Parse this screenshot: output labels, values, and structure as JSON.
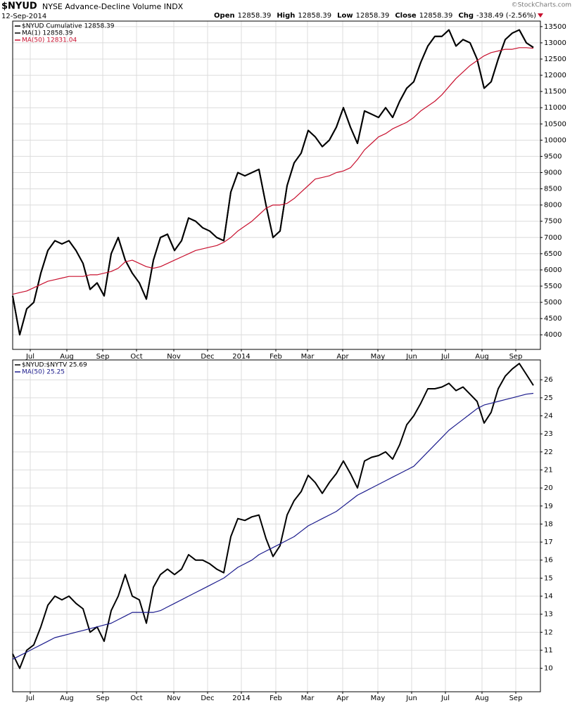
{
  "header": {
    "symbol": "$NYUD",
    "description": "NYSE Advance-Decline Volume INDX",
    "date": "12-Sep-2014",
    "quote": [
      {
        "label": "Open",
        "value": "12858.39"
      },
      {
        "label": "High",
        "value": "12858.39"
      },
      {
        "label": "Low",
        "value": "12858.39"
      },
      {
        "label": "Close",
        "value": "12858.39"
      },
      {
        "label": "Chg",
        "value": "-338.49 (-2.56%)"
      }
    ],
    "copyright": "©StockCharts.com"
  },
  "chart_data": [
    {
      "type": "line",
      "legend": "upper left",
      "grid": true,
      "x": [
        0,
        1,
        2,
        3,
        4,
        5,
        6,
        7,
        8,
        9,
        10,
        11,
        12,
        13,
        14,
        15,
        16,
        17,
        18,
        19,
        20,
        21,
        22,
        23,
        24,
        25,
        26,
        27,
        28,
        29,
        30,
        31,
        32,
        33,
        34,
        35,
        36,
        37,
        38,
        39,
        40,
        41,
        42,
        43,
        44,
        45,
        46,
        47,
        48,
        49,
        50,
        51,
        52,
        53,
        54,
        55,
        56,
        57,
        58,
        59,
        60,
        61,
        62,
        63,
        64,
        65,
        66,
        67,
        68,
        69,
        70,
        71,
        72,
        73,
        74
      ],
      "xlim": [
        0,
        75
      ],
      "xticks": [
        {
          "value": 2.5,
          "label": "Jul"
        },
        {
          "value": 7.7,
          "label": "Aug"
        },
        {
          "value": 12.8,
          "label": "Sep"
        },
        {
          "value": 17.6,
          "label": "Oct"
        },
        {
          "value": 22.9,
          "label": "Nov"
        },
        {
          "value": 27.7,
          "label": "Dec"
        },
        {
          "value": 32.5,
          "label": "2014"
        },
        {
          "value": 37.4,
          "label": "Feb"
        },
        {
          "value": 41.9,
          "label": "Mar"
        },
        {
          "value": 46.9,
          "label": "Apr"
        },
        {
          "value": 51.9,
          "label": "May"
        },
        {
          "value": 56.7,
          "label": "Jun"
        },
        {
          "value": 61.5,
          "label": "Jul"
        },
        {
          "value": 66.7,
          "label": "Aug"
        },
        {
          "value": 71.5,
          "label": "Sep"
        }
      ],
      "ylim": [
        3550,
        13670
      ],
      "yticks": [
        4000,
        4500,
        5000,
        5500,
        6000,
        6500,
        7000,
        7500,
        8000,
        8500,
        9000,
        9500,
        10000,
        10500,
        11000,
        11500,
        12000,
        12500,
        13000,
        13500
      ],
      "series": [
        {
          "name": "$NYUD Cumulative 12858.39",
          "color": "#000000",
          "values": [
            5200,
            4000,
            4800,
            5000,
            5900,
            6600,
            6900,
            6800,
            6900,
            6600,
            6200,
            5400,
            5600,
            5200,
            6500,
            7000,
            6300,
            5900,
            5600,
            5100,
            6300,
            7000,
            7100,
            6600,
            6900,
            7600,
            7500,
            7300,
            7200,
            7000,
            6900,
            8400,
            9000,
            8900,
            9000,
            9100,
            8000,
            7000,
            7200,
            8600,
            9300,
            9600,
            10300,
            10100,
            9800,
            10000,
            10400,
            11000,
            10400,
            9900,
            10900,
            10800,
            10700,
            11000,
            10700,
            11200,
            11600,
            11800,
            12400,
            12900,
            13200,
            13200,
            13400,
            12900,
            13100,
            13000,
            12500,
            11600,
            11800,
            12500,
            13100,
            13300,
            13400,
            13000,
            12858.39
          ]
        },
        {
          "name": "MA(1) 12858.39",
          "color": "#000000",
          "values": [
            5200,
            4000,
            4800,
            5000,
            5900,
            6600,
            6900,
            6800,
            6900,
            6600,
            6200,
            5400,
            5600,
            5200,
            6500,
            7000,
            6300,
            5900,
            5600,
            5100,
            6300,
            7000,
            7100,
            6600,
            6900,
            7600,
            7500,
            7300,
            7200,
            7000,
            6900,
            8400,
            9000,
            8900,
            9000,
            9100,
            8000,
            7000,
            7200,
            8600,
            9300,
            9600,
            10300,
            10100,
            9800,
            10000,
            10400,
            11000,
            10400,
            9900,
            10900,
            10800,
            10700,
            11000,
            10700,
            11200,
            11600,
            11800,
            12400,
            12900,
            13200,
            13200,
            13400,
            12900,
            13100,
            13000,
            12500,
            11600,
            11800,
            12500,
            13100,
            13300,
            13400,
            13000,
            12858.39
          ]
        },
        {
          "name": "MA(50) 12831.04",
          "color": "#c8102e",
          "values": [
            5250,
            5300,
            5350,
            5450,
            5550,
            5650,
            5700,
            5750,
            5800,
            5800,
            5800,
            5850,
            5850,
            5900,
            5950,
            6050,
            6250,
            6300,
            6200,
            6100,
            6050,
            6100,
            6200,
            6300,
            6400,
            6500,
            6600,
            6650,
            6700,
            6750,
            6850,
            7000,
            7200,
            7350,
            7500,
            7700,
            7900,
            8000,
            8000,
            8050,
            8200,
            8400,
            8600,
            8800,
            8850,
            8900,
            9000,
            9050,
            9150,
            9400,
            9700,
            9900,
            10100,
            10200,
            10350,
            10450,
            10550,
            10700,
            10900,
            11050,
            11200,
            11400,
            11650,
            11900,
            12100,
            12300,
            12450,
            12600,
            12700,
            12750,
            12800,
            12800,
            12850,
            12850,
            12831.04
          ]
        }
      ]
    },
    {
      "type": "line",
      "legend": "upper left",
      "grid": true,
      "x": [
        0,
        1,
        2,
        3,
        4,
        5,
        6,
        7,
        8,
        9,
        10,
        11,
        12,
        13,
        14,
        15,
        16,
        17,
        18,
        19,
        20,
        21,
        22,
        23,
        24,
        25,
        26,
        27,
        28,
        29,
        30,
        31,
        32,
        33,
        34,
        35,
        36,
        37,
        38,
        39,
        40,
        41,
        42,
        43,
        44,
        45,
        46,
        47,
        48,
        49,
        50,
        51,
        52,
        53,
        54,
        55,
        56,
        57,
        58,
        59,
        60,
        61,
        62,
        63,
        64,
        65,
        66,
        67,
        68,
        69,
        70,
        71,
        72,
        73,
        74
      ],
      "xlim": [
        0,
        75
      ],
      "xticks": [
        {
          "value": 2.5,
          "label": "Jul"
        },
        {
          "value": 7.7,
          "label": "Aug"
        },
        {
          "value": 12.8,
          "label": "Sep"
        },
        {
          "value": 17.6,
          "label": "Oct"
        },
        {
          "value": 22.9,
          "label": "Nov"
        },
        {
          "value": 27.7,
          "label": "Dec"
        },
        {
          "value": 32.5,
          "label": "2014"
        },
        {
          "value": 37.4,
          "label": "Feb"
        },
        {
          "value": 41.9,
          "label": "Mar"
        },
        {
          "value": 46.9,
          "label": "Apr"
        },
        {
          "value": 51.9,
          "label": "May"
        },
        {
          "value": 56.7,
          "label": "Jun"
        },
        {
          "value": 61.5,
          "label": "Jul"
        },
        {
          "value": 66.7,
          "label": "Aug"
        },
        {
          "value": 71.5,
          "label": "Sep"
        }
      ],
      "ylim": [
        8.7,
        27.1
      ],
      "yticks": [
        10,
        11,
        12,
        13,
        14,
        15,
        16,
        17,
        18,
        19,
        20,
        21,
        22,
        23,
        24,
        25,
        26
      ],
      "series": [
        {
          "name": "$NYUD:$NYTV 25.69",
          "color": "#000000",
          "values": [
            10.8,
            10.0,
            11.0,
            11.3,
            12.3,
            13.5,
            14.0,
            13.8,
            14.0,
            13.6,
            13.3,
            12.0,
            12.3,
            11.5,
            13.2,
            14.0,
            15.2,
            14.0,
            13.8,
            12.5,
            14.5,
            15.2,
            15.5,
            15.2,
            15.5,
            16.3,
            16.0,
            16.0,
            15.8,
            15.5,
            15.3,
            17.3,
            18.3,
            18.2,
            18.4,
            18.5,
            17.2,
            16.2,
            16.8,
            18.5,
            19.3,
            19.8,
            20.7,
            20.3,
            19.7,
            20.3,
            20.8,
            21.5,
            20.8,
            20.0,
            21.5,
            21.7,
            21.8,
            22.0,
            21.6,
            22.4,
            23.5,
            24.0,
            24.7,
            25.5,
            25.5,
            25.6,
            25.8,
            25.4,
            25.6,
            25.2,
            24.8,
            23.6,
            24.2,
            25.5,
            26.2,
            26.6,
            26.9,
            26.3,
            25.69
          ]
        },
        {
          "name": "MA(50) 25.25",
          "color": "#1a1a8c",
          "values": [
            10.5,
            10.7,
            10.9,
            11.1,
            11.3,
            11.5,
            11.7,
            11.8,
            11.9,
            12.0,
            12.1,
            12.2,
            12.3,
            12.4,
            12.5,
            12.7,
            12.9,
            13.1,
            13.1,
            13.1,
            13.1,
            13.2,
            13.4,
            13.6,
            13.8,
            14.0,
            14.2,
            14.4,
            14.6,
            14.8,
            15.0,
            15.3,
            15.6,
            15.8,
            16.0,
            16.3,
            16.5,
            16.7,
            16.9,
            17.1,
            17.3,
            17.6,
            17.9,
            18.1,
            18.3,
            18.5,
            18.7,
            19.0,
            19.3,
            19.6,
            19.8,
            20.0,
            20.2,
            20.4,
            20.6,
            20.8,
            21.0,
            21.2,
            21.6,
            22.0,
            22.4,
            22.8,
            23.2,
            23.5,
            23.8,
            24.1,
            24.4,
            24.6,
            24.7,
            24.8,
            24.9,
            25.0,
            25.1,
            25.2,
            25.25
          ]
        }
      ]
    }
  ]
}
